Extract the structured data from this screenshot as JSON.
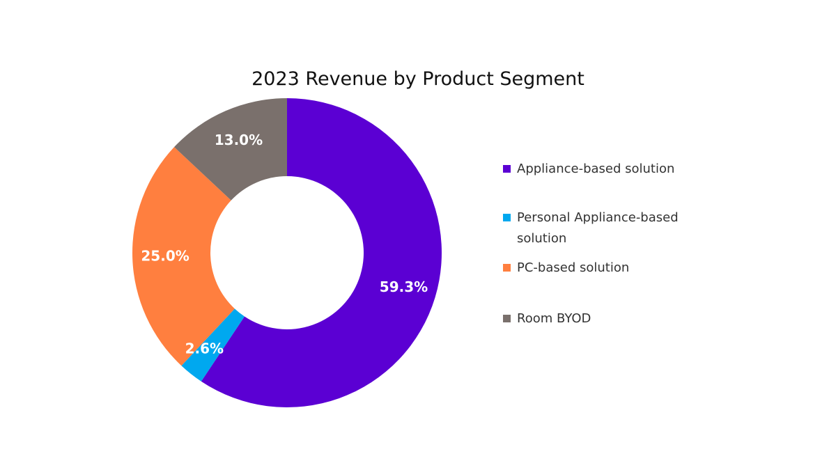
{
  "chart_data": {
    "type": "pie",
    "variant": "donut",
    "title": "2023 Revenue by Product Segment",
    "slices": [
      {
        "name": "Appliance-based solution",
        "value": 59.3,
        "label": "59.3%",
        "color": "#5B00D3"
      },
      {
        "name": "Personal Appliance-based solution",
        "value": 2.6,
        "label": "2.6%",
        "color": "#00A8EF"
      },
      {
        "name": "PC-based solution",
        "value": 25.0,
        "label": "25.0%",
        "color": "#FF7F3F"
      },
      {
        "name": "Room BYOD",
        "value": 13.0,
        "label": "13.0%",
        "color": "#7A706C"
      }
    ],
    "legend": {
      "placement": "right",
      "entries": [
        {
          "label": "Appliance-based solution",
          "color": "#5B00D3"
        },
        {
          "label": "Personal Appliance-based solution",
          "color": "#00A8EF"
        },
        {
          "label": "PC-based solution",
          "color": "#FF7F3F"
        },
        {
          "label": "Room BYOD",
          "color": "#7A706C"
        }
      ]
    }
  }
}
